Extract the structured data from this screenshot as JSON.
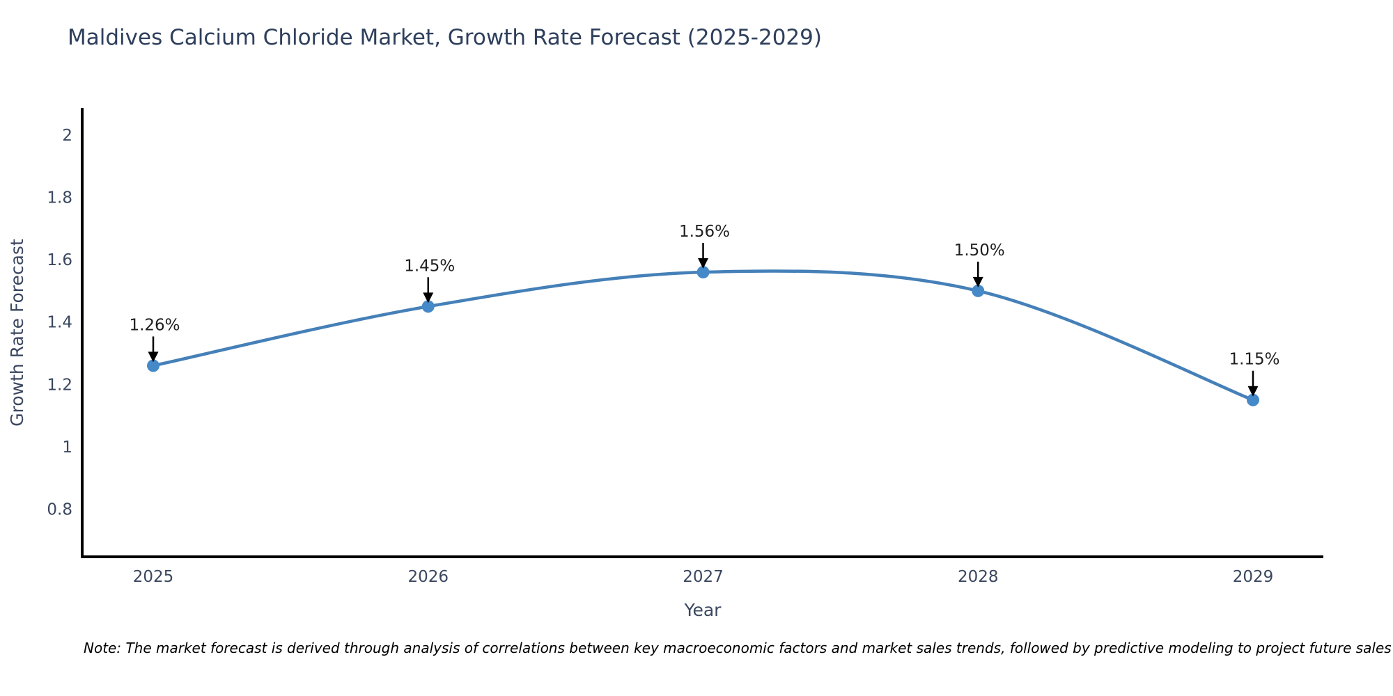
{
  "chart_data": {
    "type": "line",
    "title": "Maldives Calcium Chloride Market, Growth Rate Forecast (2025-2029)",
    "x": [
      "2025",
      "2026",
      "2027",
      "2028",
      "2029"
    ],
    "y": [
      1.26,
      1.45,
      1.56,
      1.5,
      1.15
    ],
    "point_labels": [
      "1.26%",
      "1.45%",
      "1.56%",
      "1.50%",
      "1.15%"
    ],
    "xlabel": "Year",
    "ylabel": "Growth Rate Forecast",
    "yticks": [
      "2",
      "1.8",
      "1.6",
      "1.4",
      "1.2",
      "1",
      "0.8"
    ],
    "ytick_values": [
      2,
      1.8,
      1.6,
      1.4,
      1.2,
      1,
      0.8
    ],
    "ylim": [
      0.647,
      2.087
    ],
    "line_shape": "spline",
    "grid": false,
    "legend": "none",
    "colors": {
      "line": "#4580b8",
      "marker": "#4589c9",
      "axis": "#000000",
      "tick_text": "#3a475f",
      "axis_title_text": "#3a475f",
      "title_text": "#2e3f5c",
      "annotation_text": "#1f1f1f",
      "annotation_arrow": "#000000"
    },
    "note": "Note: The market forecast is derived through analysis of correlations between key macroeconomic factors and market sales trends, followed by predictive modeling to project future sales"
  }
}
